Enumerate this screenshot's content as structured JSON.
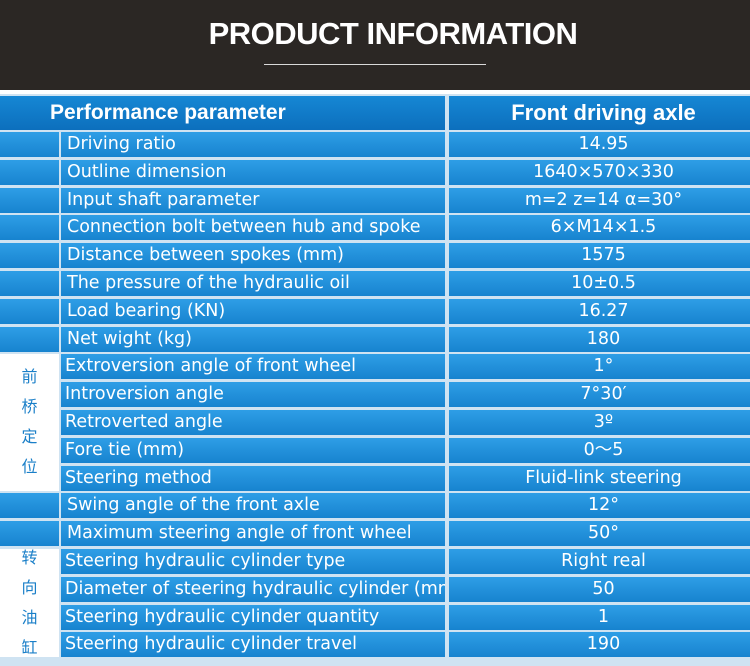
{
  "header": {
    "title": "PRODUCT INFORMATION"
  },
  "table": {
    "col_param": "Performance parameter",
    "col_value": "Front driving axle",
    "rows": [
      {
        "param": "Driving ratio",
        "value": "14.95"
      },
      {
        "param": "Outline dimension",
        "value": "1640×570×330"
      },
      {
        "param": "Input shaft parameter",
        "value": "m=2 z=14 α=30°"
      },
      {
        "param": "Connection bolt between hub and spoke",
        "value": "6×M14×1.5"
      },
      {
        "param": "Distance between spokes (mm)",
        "value": "1575"
      },
      {
        "param": "The pressure of the hydraulic oil",
        "value": "10±0.5"
      },
      {
        "param": "Load bearing (KN)",
        "value": "16.27"
      },
      {
        "param": "Net wight (kg)",
        "value": "180"
      },
      {
        "param": "Extroversion angle of front wheel",
        "value": "1°"
      },
      {
        "param": "Introversion angle",
        "value": "7°30′"
      },
      {
        "param": "Retroverted angle",
        "value": "3º"
      },
      {
        "param": "Fore tie (mm)",
        "value": "0～5"
      },
      {
        "param": "Steering method",
        "value": "Fluid-link steering"
      },
      {
        "param": "Swing angle of the front axle",
        "value": "12°"
      },
      {
        "param": "Maximum steering angle of front wheel",
        "value": "50°"
      },
      {
        "param": "Steering hydraulic cylinder type",
        "value": "Right real"
      },
      {
        "param": "Diameter of steering hydraulic cylinder (mm)",
        "value": "50"
      },
      {
        "param": "Steering hydraulic cylinder quantity",
        "value": "1"
      },
      {
        "param": "Steering hydraulic cylinder travel",
        "value": "190"
      }
    ],
    "groups": [
      {
        "chars": [
          "前",
          "桥",
          "定",
          "位"
        ]
      },
      {
        "chars": [
          "转",
          "向",
          "油",
          "缸"
        ]
      }
    ]
  }
}
